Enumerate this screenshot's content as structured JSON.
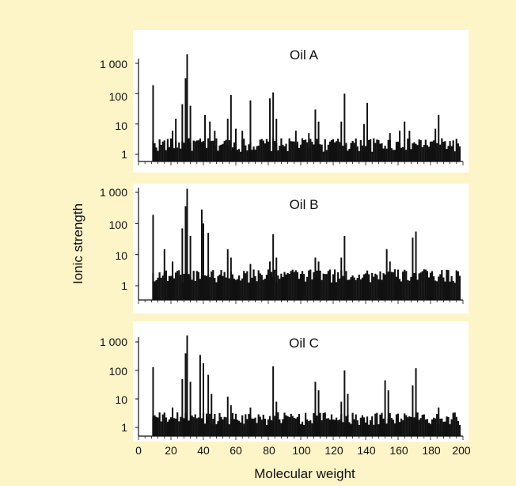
{
  "figure": {
    "ylabel": "Ionic strength",
    "xlabel": "Molecular weight",
    "background": "#fdf4c8",
    "panel_color": "#ffffff",
    "bar_color": "#111111"
  },
  "chart_data": [
    {
      "type": "bar",
      "title": "Oil A",
      "yscale": "log",
      "ylim": [
        1,
        1000
      ],
      "yticks": [
        "1",
        "10",
        "100",
        "1 000"
      ],
      "xlim": [
        0,
        200
      ],
      "peaks": [
        [
          9,
          190
        ],
        [
          21,
          6
        ],
        [
          23,
          15
        ],
        [
          27,
          45
        ],
        [
          29,
          320
        ],
        [
          30,
          2000
        ],
        [
          32,
          40
        ],
        [
          41,
          20
        ],
        [
          44,
          12
        ],
        [
          47,
          6
        ],
        [
          55,
          15
        ],
        [
          57,
          90
        ],
        [
          60,
          7
        ],
        [
          64,
          6
        ],
        [
          69,
          60
        ],
        [
          81,
          70
        ],
        [
          83,
          110
        ],
        [
          85,
          15
        ],
        [
          97,
          6
        ],
        [
          105,
          5
        ],
        [
          109,
          30
        ],
        [
          111,
          12
        ],
        [
          125,
          12
        ],
        [
          127,
          100
        ],
        [
          139,
          10
        ],
        [
          141,
          50
        ],
        [
          155,
          5
        ],
        [
          161,
          6
        ],
        [
          164,
          12
        ],
        [
          167,
          6
        ],
        [
          183,
          7
        ],
        [
          185,
          20
        ]
      ]
    },
    {
      "type": "bar",
      "title": "Oil B",
      "yscale": "log",
      "ylim": [
        1,
        1000
      ],
      "yticks": [
        "1",
        "10",
        "100",
        "1 000"
      ],
      "xlim": [
        0,
        200
      ],
      "peaks": [
        [
          9,
          190
        ],
        [
          16,
          15
        ],
        [
          21,
          6
        ],
        [
          27,
          70
        ],
        [
          29,
          360
        ],
        [
          30,
          1300
        ],
        [
          32,
          40
        ],
        [
          39,
          280
        ],
        [
          40,
          100
        ],
        [
          43,
          50
        ],
        [
          55,
          15
        ],
        [
          57,
          8
        ],
        [
          69,
          5
        ],
        [
          81,
          6
        ],
        [
          83,
          45
        ],
        [
          85,
          8
        ],
        [
          109,
          8
        ],
        [
          111,
          6
        ],
        [
          125,
          8
        ],
        [
          127,
          40
        ],
        [
          153,
          15
        ],
        [
          155,
          6
        ],
        [
          169,
          35
        ],
        [
          171,
          55
        ]
      ]
    },
    {
      "type": "bar",
      "title": "Oil C",
      "yscale": "log",
      "ylim": [
        1,
        1000
      ],
      "yticks": [
        "1",
        "10",
        "100",
        "1 000"
      ],
      "xlim": [
        0,
        200
      ],
      "peaks": [
        [
          9,
          130
        ],
        [
          21,
          5
        ],
        [
          27,
          50
        ],
        [
          29,
          400
        ],
        [
          30,
          1700
        ],
        [
          32,
          40
        ],
        [
          38,
          350
        ],
        [
          40,
          180
        ],
        [
          43,
          70
        ],
        [
          45,
          15
        ],
        [
          55,
          12
        ],
        [
          57,
          6
        ],
        [
          69,
          5
        ],
        [
          83,
          140
        ],
        [
          85,
          8
        ],
        [
          109,
          40
        ],
        [
          111,
          20
        ],
        [
          125,
          8
        ],
        [
          127,
          100
        ],
        [
          129,
          15
        ],
        [
          152,
          45
        ],
        [
          154,
          20
        ],
        [
          169,
          30
        ],
        [
          171,
          120
        ],
        [
          185,
          5
        ]
      ],
      "xticks": [
        "0",
        "20",
        "40",
        "60",
        "80",
        "100",
        "120",
        "140",
        "160",
        "180",
        "200"
      ]
    }
  ]
}
